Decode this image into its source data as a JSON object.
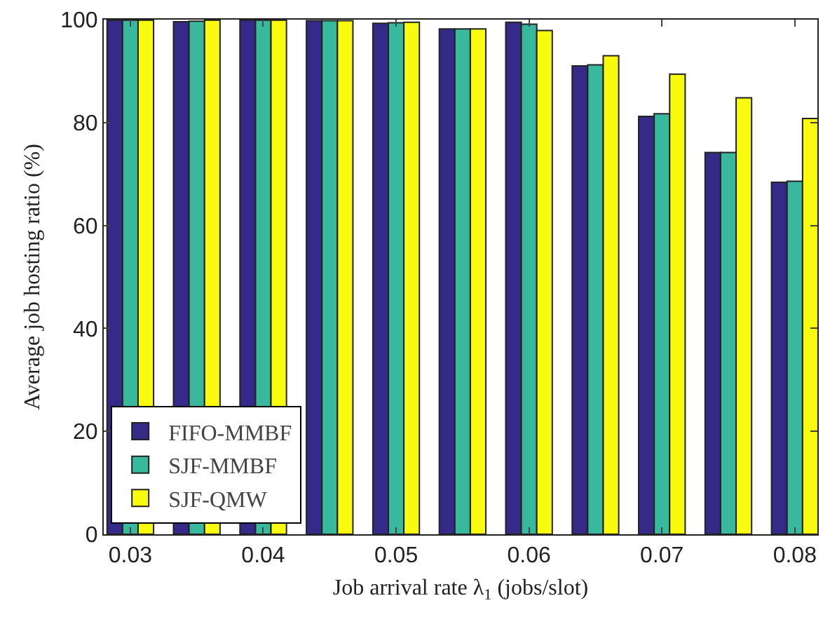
{
  "chart_data": {
    "type": "bar",
    "xlabel": "Job arrival rate λ$_{1}$ (jobs/slot)",
    "ylabel": "Average job hosting ratio (%)",
    "x": [
      0.03,
      0.035,
      0.04,
      0.045,
      0.05,
      0.055,
      0.06,
      0.065,
      0.07,
      0.075,
      0.08
    ],
    "series": [
      {
        "name": "FIFO-MMBF",
        "color": "#352a87",
        "values": [
          99.9,
          99.6,
          99.9,
          99.8,
          99.3,
          98.2,
          99.5,
          91.0,
          81.2,
          74.2,
          68.4
        ]
      },
      {
        "name": "SJF-MMBF",
        "color": "#38b99e",
        "values": [
          99.9,
          99.7,
          99.9,
          99.8,
          99.4,
          98.2,
          99.1,
          91.2,
          81.7,
          74.2,
          68.6
        ]
      },
      {
        "name": "SJF-QMW",
        "color": "#f9fb0e",
        "values": [
          99.9,
          99.9,
          99.9,
          99.8,
          99.5,
          98.2,
          97.9,
          93.0,
          89.4,
          84.8,
          80.8
        ]
      }
    ],
    "xlim": [
      0.028,
      0.0817
    ],
    "xticks": [
      {
        "value": 0.03,
        "label": "0.03"
      },
      {
        "value": 0.04,
        "label": "0.04"
      },
      {
        "value": 0.05,
        "label": "0.05"
      },
      {
        "value": 0.06,
        "label": "0.06"
      },
      {
        "value": 0.07,
        "label": "0.07"
      },
      {
        "value": 0.08,
        "label": "0.08"
      }
    ],
    "ylim": [
      0,
      100
    ],
    "yticks": [
      0,
      20,
      40,
      60,
      80,
      100
    ],
    "grid": false,
    "legend": "bottom left"
  }
}
